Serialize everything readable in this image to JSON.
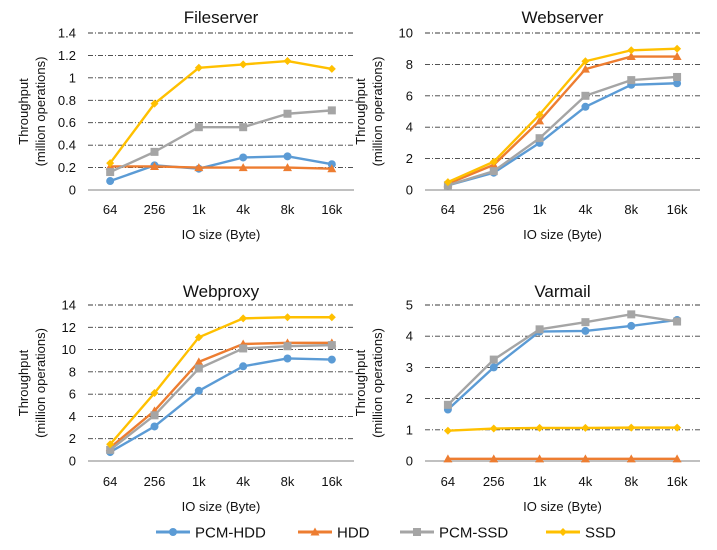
{
  "legend": {
    "placement": "bottom-center",
    "items": [
      {
        "label": "PCM-HDD",
        "color": "#5B9BD5",
        "marker": "circle"
      },
      {
        "label": "HDD",
        "color": "#ED7D31",
        "marker": "triangle"
      },
      {
        "label": "PCM-SSD",
        "color": "#A5A5A5",
        "marker": "square"
      },
      {
        "label": "SSD",
        "color": "#FFC000",
        "marker": "diamond"
      }
    ]
  },
  "chart_data": [
    {
      "type": "line",
      "title": "Fileserver",
      "xlabel": "IO size (Byte)",
      "ylabel": "Throughput",
      "ylabel_sub": "(million operations)",
      "categories": [
        "64",
        "256",
        "1k",
        "4k",
        "8k",
        "16k"
      ],
      "ylim": [
        0,
        1.4
      ],
      "yticks": [
        "0",
        "0.2",
        "0.4",
        "0.6",
        "0.8",
        "1",
        "1.2",
        "1.4"
      ],
      "grid": true,
      "series": [
        {
          "name": "PCM-HDD",
          "values": [
            0.08,
            0.22,
            0.19,
            0.29,
            0.3,
            0.23
          ]
        },
        {
          "name": "HDD",
          "values": [
            0.21,
            0.21,
            0.2,
            0.2,
            0.2,
            0.19
          ]
        },
        {
          "name": "PCM-SSD",
          "values": [
            0.16,
            0.34,
            0.56,
            0.56,
            0.68,
            0.71
          ]
        },
        {
          "name": "SSD",
          "values": [
            0.24,
            0.77,
            1.09,
            1.12,
            1.15,
            1.08
          ]
        }
      ]
    },
    {
      "type": "line",
      "title": "Webserver",
      "xlabel": "IO size (Byte)",
      "ylabel": "Throughput",
      "ylabel_sub": "(million operations)",
      "categories": [
        "64",
        "256",
        "1k",
        "4k",
        "8k",
        "16k"
      ],
      "ylim": [
        0,
        10
      ],
      "yticks": [
        "0",
        "2",
        "4",
        "6",
        "8",
        "10"
      ],
      "grid": true,
      "series": [
        {
          "name": "PCM-HDD",
          "values": [
            0.3,
            1.1,
            3.0,
            5.3,
            6.7,
            6.8
          ]
        },
        {
          "name": "HDD",
          "values": [
            0.4,
            1.6,
            4.4,
            7.7,
            8.5,
            8.5
          ]
        },
        {
          "name": "PCM-SSD",
          "values": [
            0.3,
            1.2,
            3.3,
            6.0,
            7.0,
            7.2
          ]
        },
        {
          "name": "SSD",
          "values": [
            0.5,
            1.8,
            4.8,
            8.2,
            8.9,
            9.0
          ]
        }
      ]
    },
    {
      "type": "line",
      "title": "Webproxy",
      "xlabel": "IO size  (Byte)",
      "ylabel": "Throughput",
      "ylabel_sub": "(million operations)",
      "categories": [
        "64",
        "256",
        "1k",
        "4k",
        "8k",
        "16k"
      ],
      "ylim": [
        0,
        14
      ],
      "yticks": [
        "0",
        "2",
        "4",
        "6",
        "8",
        "10",
        "12",
        "14"
      ],
      "grid": true,
      "series": [
        {
          "name": "PCM-HDD",
          "values": [
            0.8,
            3.1,
            6.3,
            8.5,
            9.2,
            9.1
          ]
        },
        {
          "name": "HDD",
          "values": [
            1.2,
            4.5,
            8.9,
            10.5,
            10.6,
            10.6
          ]
        },
        {
          "name": "PCM-SSD",
          "values": [
            1.0,
            4.1,
            8.3,
            10.1,
            10.3,
            10.4
          ]
        },
        {
          "name": "SSD",
          "values": [
            1.5,
            6.1,
            11.1,
            12.8,
            12.9,
            12.9
          ]
        }
      ]
    },
    {
      "type": "line",
      "title": "Varmail",
      "xlabel": "IO size (Byte)",
      "ylabel": "Throughput",
      "ylabel_sub": "(million operations)",
      "categories": [
        "64",
        "256",
        "1k",
        "4k",
        "8k",
        "16k"
      ],
      "ylim": [
        0,
        5
      ],
      "yticks": [
        "0",
        "1",
        "2",
        "3",
        "4",
        "5"
      ],
      "grid": true,
      "series": [
        {
          "name": "PCM-HDD",
          "values": [
            1.65,
            3.0,
            4.15,
            4.17,
            4.33,
            4.52
          ]
        },
        {
          "name": "HDD",
          "values": [
            0.07,
            0.07,
            0.07,
            0.07,
            0.07,
            0.07
          ]
        },
        {
          "name": "PCM-SSD",
          "values": [
            1.8,
            3.25,
            4.22,
            4.45,
            4.7,
            4.47
          ]
        },
        {
          "name": "SSD",
          "values": [
            0.97,
            1.04,
            1.06,
            1.06,
            1.07,
            1.07
          ]
        }
      ]
    }
  ]
}
